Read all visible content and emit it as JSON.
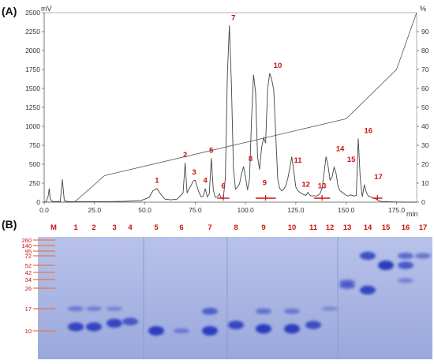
{
  "chart_data": [
    {
      "type": "line",
      "panel_label": "(A)",
      "xlabel": "min",
      "ylabel": "mV",
      "y2label": "%",
      "xlim": [
        0,
        185
      ],
      "ylim": [
        0,
        2500
      ],
      "y2lim": [
        0,
        100
      ],
      "x_ticks": [
        "0.0",
        "25.0",
        "50.0",
        "75.0",
        "100.0",
        "125.0",
        "150.0",
        "175.0"
      ],
      "x_tick_values": [
        0,
        25,
        50,
        75,
        100,
        125,
        150,
        175
      ],
      "y_ticks": [
        "0",
        "250",
        "500",
        "750",
        "1000",
        "1250",
        "1500",
        "1750",
        "2000",
        "2250",
        "2500"
      ],
      "y_tick_values": [
        0,
        250,
        500,
        750,
        1000,
        1250,
        1500,
        1750,
        2000,
        2250,
        2500
      ],
      "y2_ticks": [
        "0",
        "10",
        "20",
        "30",
        "40",
        "50",
        "60",
        "70",
        "80",
        "90"
      ],
      "y2_tick_values": [
        0,
        10,
        20,
        30,
        40,
        50,
        60,
        70,
        80,
        90
      ],
      "grid": false,
      "peak_color": "#cc1111",
      "series": [
        {
          "name": "",
          "role": "absorbance",
          "x": [
            0,
            1,
            2,
            2.5,
            3,
            4,
            5,
            8,
            9,
            10,
            11,
            13,
            20,
            30,
            40,
            48,
            52,
            54,
            56,
            58,
            60,
            63,
            66,
            69,
            70,
            71,
            72,
            73,
            74,
            75,
            76,
            77,
            78,
            79,
            80,
            81,
            82,
            83,
            84,
            85,
            86,
            87,
            88,
            89,
            90,
            91,
            92,
            93,
            94,
            95,
            96,
            97,
            98,
            99,
            100,
            101,
            102,
            103,
            104,
            105,
            106,
            107,
            108,
            109,
            110,
            111,
            112,
            113,
            114,
            115,
            116,
            117,
            118,
            119,
            120,
            121,
            122,
            123,
            124,
            125,
            126,
            127,
            128,
            129,
            130,
            131,
            132,
            133,
            134,
            135,
            136,
            137,
            138,
            139,
            140,
            141,
            142,
            143,
            144,
            145,
            146,
            147,
            148,
            149,
            150,
            151,
            152,
            153,
            154,
            155,
            156,
            157,
            158,
            159,
            160,
            161,
            162,
            163,
            164,
            165,
            166,
            167,
            168,
            170,
            175,
            180,
            185
          ],
          "y": [
            0,
            10,
            80,
            180,
            40,
            10,
            5,
            10,
            300,
            20,
            10,
            5,
            5,
            5,
            10,
            20,
            60,
            150,
            180,
            100,
            40,
            30,
            40,
            120,
            520,
            120,
            180,
            220,
            280,
            290,
            200,
            120,
            70,
            80,
            180,
            70,
            110,
            580,
            160,
            60,
            70,
            110,
            50,
            60,
            320,
            1700,
            2330,
            1550,
            450,
            170,
            200,
            240,
            370,
            470,
            330,
            160,
            300,
            1100,
            1680,
            1450,
            600,
            430,
            720,
            850,
            780,
            1500,
            1700,
            1620,
            1480,
            900,
            300,
            180,
            150,
            170,
            220,
            310,
            450,
            600,
            400,
            200,
            150,
            130,
            110,
            100,
            90,
            130,
            90,
            80,
            85,
            80,
            90,
            110,
            180,
            380,
            600,
            480,
            290,
            330,
            460,
            380,
            200,
            150,
            130,
            110,
            90,
            80,
            95,
            90,
            80,
            90,
            840,
            300,
            70,
            230,
            130,
            80,
            70,
            60,
            50,
            40,
            20,
            10,
            5,
            5,
            2,
            0,
            0
          ]
        },
        {
          "name": "",
          "role": "gradient",
          "x": [
            0,
            15,
            30,
            150,
            175,
            185
          ],
          "y": [
            0,
            0,
            14,
            44,
            70,
            100
          ]
        }
      ],
      "peak_labels": [
        {
          "label": "1",
          "x": 56,
          "y": 180
        },
        {
          "label": "2",
          "x": 70,
          "y": 520
        },
        {
          "label": "3",
          "x": 74.5,
          "y": 290
        },
        {
          "label": "4",
          "x": 80,
          "y": 180
        },
        {
          "label": "5",
          "x": 83,
          "y": 580
        },
        {
          "label": "6",
          "x": 89,
          "y": 110
        },
        {
          "label": "7",
          "x": 94,
          "y": 2330
        },
        {
          "label": "8",
          "x": 102.5,
          "y": 470
        },
        {
          "label": "9",
          "x": 109.5,
          "y": 150
        },
        {
          "label": "10",
          "x": 116,
          "y": 1700
        },
        {
          "label": "11",
          "x": 126,
          "y": 450
        },
        {
          "label": "12",
          "x": 130,
          "y": 130
        },
        {
          "label": "13",
          "x": 138,
          "y": 110
        },
        {
          "label": "14",
          "x": 147,
          "y": 600
        },
        {
          "label": "15",
          "x": 152.5,
          "y": 460
        },
        {
          "label": "16",
          "x": 161,
          "y": 840
        },
        {
          "label": "17",
          "x": 166,
          "y": 230
        }
      ],
      "fraction_bars": [
        {
          "x_start": 86,
          "x_end": 92
        },
        {
          "x_start": 105,
          "x_end": 115
        },
        {
          "x_start": 134,
          "x_end": 142
        },
        {
          "x_start": 163,
          "x_end": 168
        }
      ]
    },
    {
      "type": "gel",
      "panel_label": "(B)",
      "lane_labels": [
        "M",
        "1",
        "2",
        "3",
        "4",
        "5",
        "6",
        "7",
        "8",
        "9",
        "10",
        "11",
        "12",
        "13",
        "14",
        "15",
        "16",
        "17"
      ],
      "marker_labels": [
        "260",
        "140",
        "95",
        "72",
        "52",
        "42",
        "34",
        "26",
        "17",
        "10"
      ],
      "label_color": "#cc1111",
      "band_color": "#2b3cc0",
      "gel_color": "#aab6e2",
      "bands": [
        {
          "lane": "1",
          "kda": 11,
          "strength": 0.9
        },
        {
          "lane": "1",
          "kda": 17,
          "strength": 0.3
        },
        {
          "lane": "2",
          "kda": 11,
          "strength": 0.9
        },
        {
          "lane": "2",
          "kda": 17,
          "strength": 0.25
        },
        {
          "lane": "3",
          "kda": 12,
          "strength": 0.9
        },
        {
          "lane": "3",
          "kda": 17,
          "strength": 0.2
        },
        {
          "lane": "4",
          "kda": 12.5,
          "strength": 0.7
        },
        {
          "lane": "5",
          "kda": 10,
          "strength": 1.0
        },
        {
          "lane": "6",
          "kda": 10,
          "strength": 0.3
        },
        {
          "lane": "7",
          "kda": 10,
          "strength": 1.0
        },
        {
          "lane": "7",
          "kda": 16,
          "strength": 0.6
        },
        {
          "lane": "8",
          "kda": 11.5,
          "strength": 0.85
        },
        {
          "lane": "9",
          "kda": 10.5,
          "strength": 1.0
        },
        {
          "lane": "9",
          "kda": 16,
          "strength": 0.4
        },
        {
          "lane": "10",
          "kda": 10.5,
          "strength": 1.0
        },
        {
          "lane": "10",
          "kda": 16,
          "strength": 0.35
        },
        {
          "lane": "11",
          "kda": 11.5,
          "strength": 0.8
        },
        {
          "lane": "12",
          "kda": 17,
          "strength": 0.15
        },
        {
          "lane": "13",
          "kda": 28,
          "strength": 0.5
        },
        {
          "lane": "13",
          "kda": 31,
          "strength": 0.45
        },
        {
          "lane": "14",
          "kda": 25,
          "strength": 0.9
        },
        {
          "lane": "14",
          "kda": 72,
          "strength": 0.8
        },
        {
          "lane": "15",
          "kda": 52,
          "strength": 1.0
        },
        {
          "lane": "16",
          "kda": 52,
          "strength": 0.7
        },
        {
          "lane": "16",
          "kda": 72,
          "strength": 0.5
        },
        {
          "lane": "16",
          "kda": 33,
          "strength": 0.25
        },
        {
          "lane": "17",
          "kda": 72,
          "strength": 0.4
        }
      ]
    }
  ]
}
